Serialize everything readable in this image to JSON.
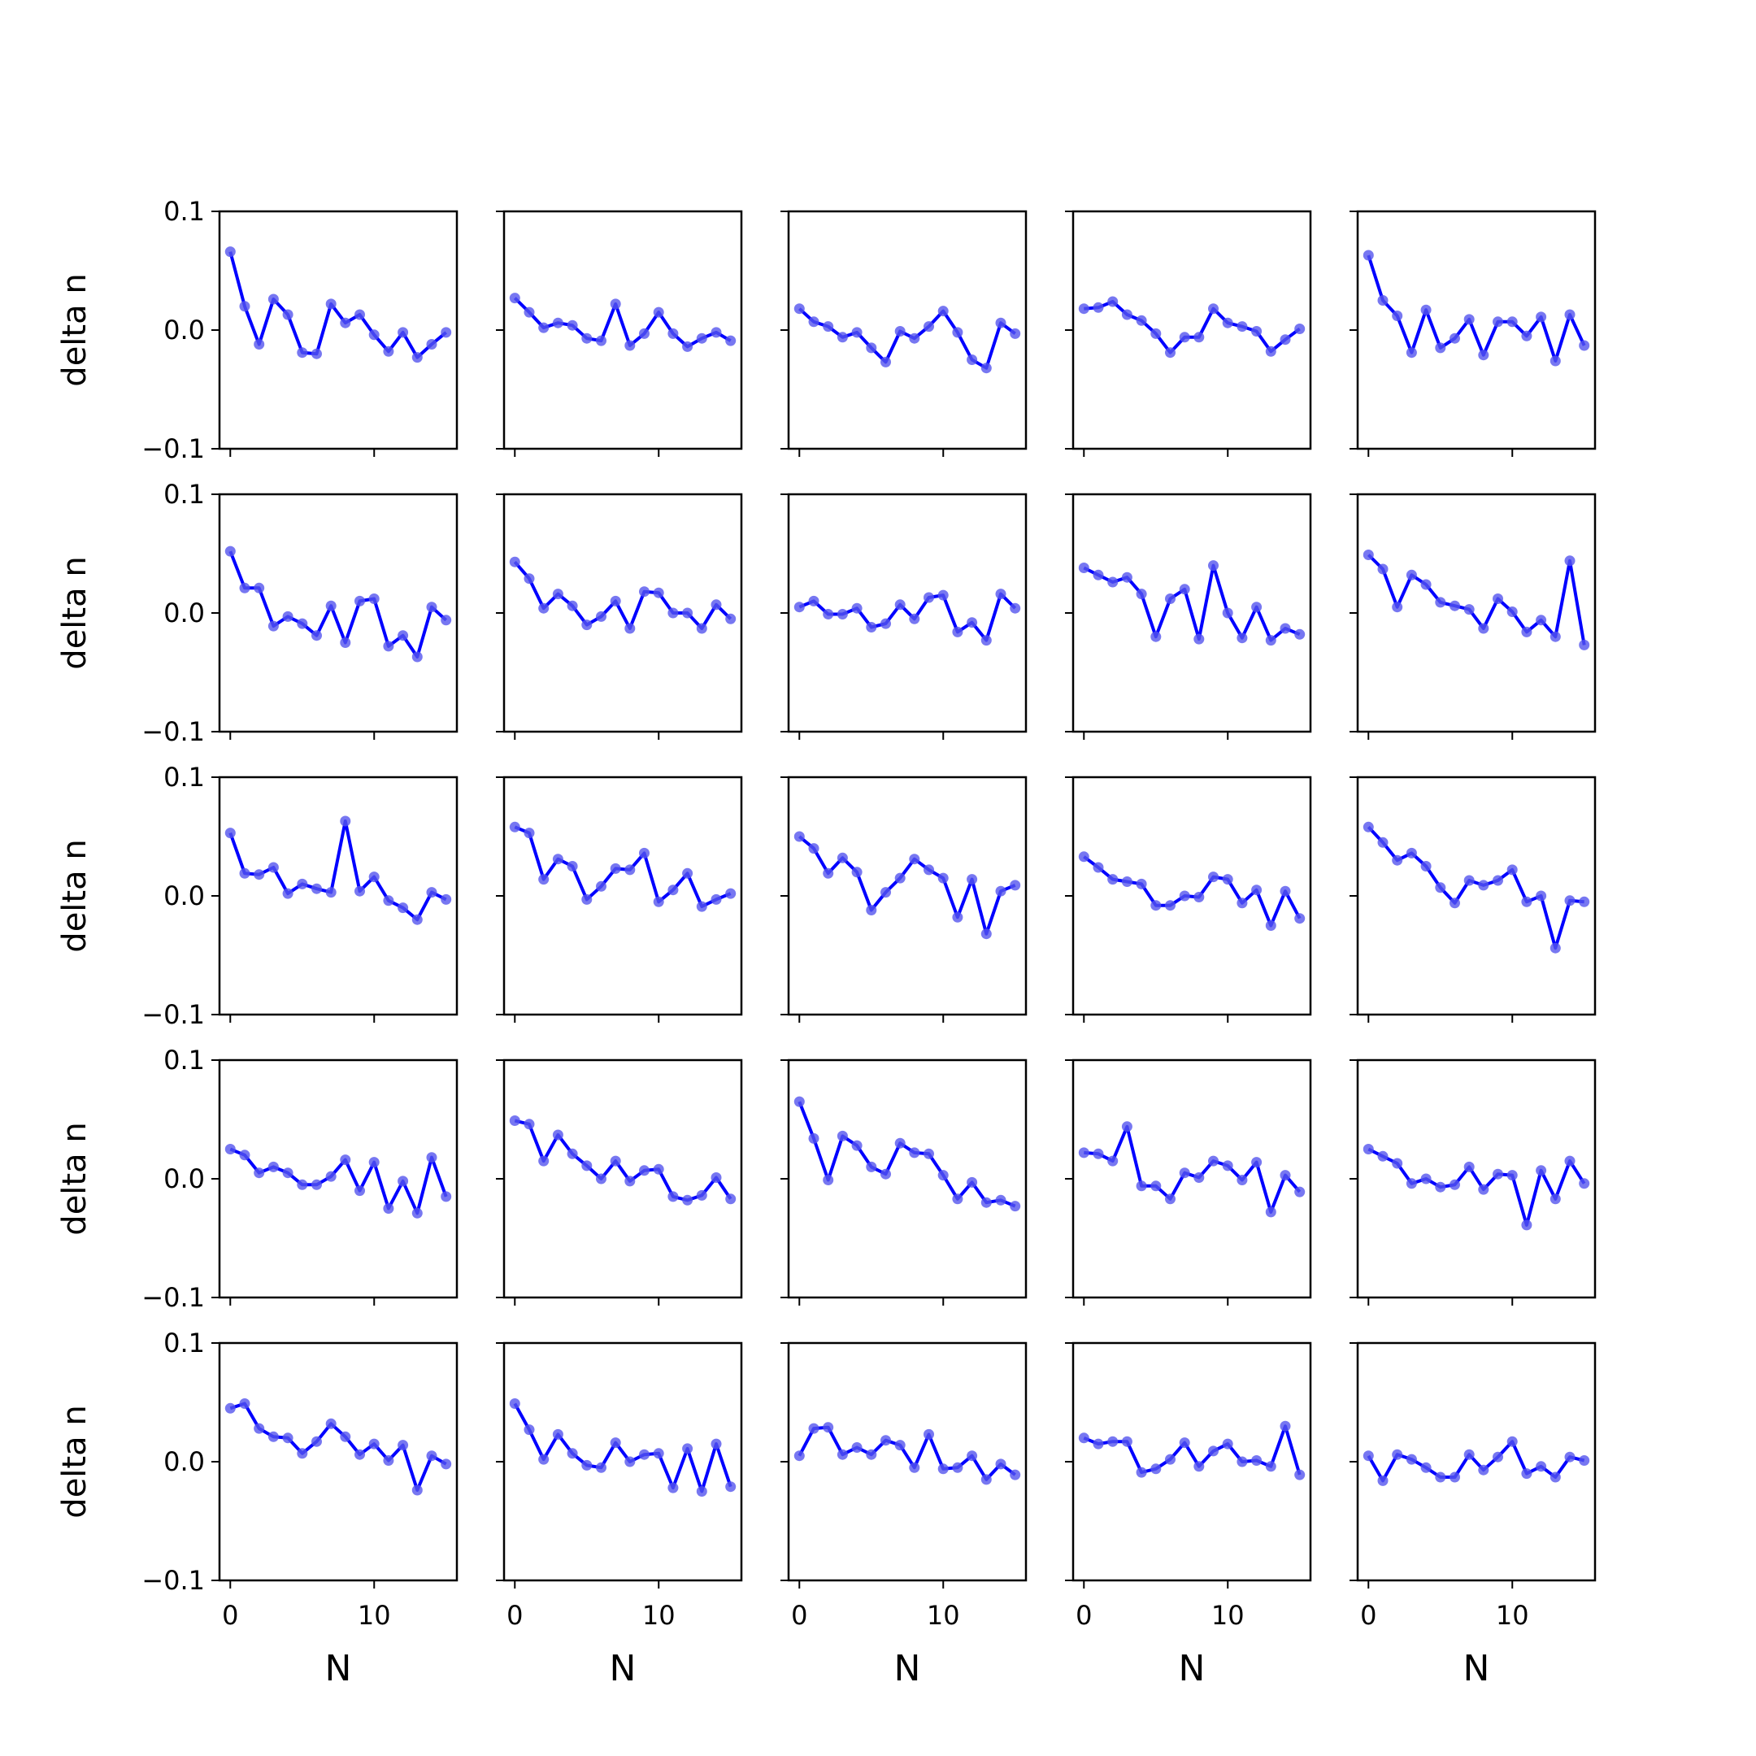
{
  "chart_data": {
    "type": "line",
    "layout": "5x5 grid of small multiples, shared axes",
    "xlabel": "N",
    "ylabel": "delta n",
    "xlim": [
      -0.75,
      15.75
    ],
    "ylim": [
      -0.1,
      0.1
    ],
    "x_ticks": [
      0,
      10
    ],
    "x_tick_labels": [
      "0",
      "10"
    ],
    "y_ticks": [
      -0.1,
      0.0,
      0.1
    ],
    "y_tick_labels": [
      "−0.1",
      "0.0",
      "0.1"
    ],
    "x": [
      0,
      1,
      2,
      3,
      4,
      5,
      6,
      7,
      8,
      9,
      10,
      11,
      12,
      13,
      14,
      15
    ],
    "line_color": "#0000ff",
    "marker_color": "#5555ee",
    "grid": false,
    "panels": [
      [
        [
          0.066,
          0.02,
          -0.012,
          0.026,
          0.013,
          -0.019,
          -0.02,
          0.022,
          0.006,
          0.013,
          -0.004,
          -0.018,
          -0.002,
          -0.023,
          -0.012,
          -0.002
        ],
        [
          0.027,
          0.015,
          0.002,
          0.006,
          0.004,
          -0.007,
          -0.009,
          0.022,
          -0.013,
          -0.003,
          0.015,
          -0.003,
          -0.014,
          -0.007,
          -0.002,
          -0.009
        ],
        [
          0.018,
          0.007,
          0.003,
          -0.006,
          -0.002,
          -0.015,
          -0.027,
          -0.001,
          -0.007,
          0.003,
          0.016,
          -0.002,
          -0.025,
          -0.032,
          0.006,
          -0.003
        ],
        [
          0.018,
          0.019,
          0.024,
          0.013,
          0.008,
          -0.003,
          -0.019,
          -0.006,
          -0.006,
          0.018,
          0.006,
          0.003,
          -0.001,
          -0.018,
          -0.008,
          0.001
        ],
        [
          0.063,
          0.025,
          0.012,
          -0.019,
          0.017,
          -0.015,
          -0.007,
          0.009,
          -0.021,
          0.007,
          0.007,
          -0.005,
          0.011,
          -0.026,
          0.013,
          -0.013
        ]
      ],
      [
        [
          0.052,
          0.021,
          0.021,
          -0.011,
          -0.003,
          -0.009,
          -0.019,
          0.006,
          -0.025,
          0.01,
          0.012,
          -0.028,
          -0.019,
          -0.037,
          0.005,
          -0.006
        ],
        [
          0.043,
          0.029,
          0.004,
          0.016,
          0.006,
          -0.01,
          -0.003,
          0.01,
          -0.013,
          0.018,
          0.017,
          0.0,
          0.0,
          -0.013,
          0.007,
          -0.005
        ],
        [
          0.005,
          0.01,
          -0.001,
          -0.001,
          0.004,
          -0.012,
          -0.009,
          0.007,
          -0.005,
          0.013,
          0.015,
          -0.016,
          -0.008,
          -0.023,
          0.016,
          0.004
        ],
        [
          0.038,
          0.032,
          0.026,
          0.03,
          0.016,
          -0.02,
          0.012,
          0.02,
          -0.022,
          0.04,
          0.0,
          -0.021,
          0.005,
          -0.023,
          -0.013,
          -0.018
        ],
        [
          0.049,
          0.037,
          0.005,
          0.032,
          0.024,
          0.009,
          0.006,
          0.003,
          -0.013,
          0.012,
          0.001,
          -0.016,
          -0.006,
          -0.02,
          0.044,
          -0.027
        ]
      ],
      [
        [
          0.053,
          0.019,
          0.018,
          0.024,
          0.002,
          0.01,
          0.006,
          0.003,
          0.063,
          0.004,
          0.016,
          -0.004,
          -0.01,
          -0.02,
          0.003,
          -0.003
        ],
        [
          0.058,
          0.053,
          0.014,
          0.031,
          0.025,
          -0.003,
          0.008,
          0.023,
          0.022,
          0.036,
          -0.005,
          0.005,
          0.019,
          -0.009,
          -0.003,
          0.002
        ],
        [
          0.05,
          0.04,
          0.019,
          0.032,
          0.02,
          -0.012,
          0.003,
          0.015,
          0.031,
          0.022,
          0.015,
          -0.018,
          0.014,
          -0.032,
          0.004,
          0.009
        ],
        [
          0.033,
          0.024,
          0.014,
          0.012,
          0.01,
          -0.008,
          -0.008,
          0.0,
          -0.001,
          0.016,
          0.014,
          -0.006,
          0.005,
          -0.025,
          0.004,
          -0.019
        ],
        [
          0.058,
          0.045,
          0.03,
          0.036,
          0.025,
          0.007,
          -0.006,
          0.013,
          0.009,
          0.013,
          0.022,
          -0.005,
          0.0,
          -0.044,
          -0.004,
          -0.005
        ]
      ],
      [
        [
          0.025,
          0.02,
          0.005,
          0.01,
          0.005,
          -0.005,
          -0.005,
          0.002,
          0.016,
          -0.01,
          0.014,
          -0.025,
          -0.002,
          -0.029,
          0.018,
          -0.015
        ],
        [
          0.049,
          0.046,
          0.015,
          0.037,
          0.021,
          0.011,
          0.0,
          0.015,
          -0.002,
          0.007,
          0.008,
          -0.015,
          -0.018,
          -0.014,
          0.001,
          -0.017
        ],
        [
          0.065,
          0.034,
          -0.001,
          0.036,
          0.028,
          0.01,
          0.004,
          0.03,
          0.022,
          0.021,
          0.003,
          -0.017,
          -0.003,
          -0.02,
          -0.018,
          -0.023
        ],
        [
          0.022,
          0.021,
          0.015,
          0.044,
          -0.006,
          -0.006,
          -0.017,
          0.005,
          0.001,
          0.015,
          0.011,
          -0.001,
          0.014,
          -0.028,
          0.003,
          -0.011
        ],
        [
          0.025,
          0.019,
          0.013,
          -0.004,
          0.0,
          -0.007,
          -0.005,
          0.01,
          -0.009,
          0.004,
          0.003,
          -0.039,
          0.007,
          -0.017,
          0.015,
          -0.004
        ]
      ],
      [
        [
          0.045,
          0.049,
          0.028,
          0.021,
          0.02,
          0.007,
          0.017,
          0.032,
          0.021,
          0.006,
          0.015,
          0.001,
          0.014,
          -0.024,
          0.005,
          -0.002
        ],
        [
          0.049,
          0.027,
          0.002,
          0.023,
          0.007,
          -0.003,
          -0.005,
          0.016,
          0.0,
          0.006,
          0.007,
          -0.022,
          0.011,
          -0.025,
          0.015,
          -0.021
        ],
        [
          0.005,
          0.028,
          0.029,
          0.006,
          0.012,
          0.006,
          0.018,
          0.014,
          -0.005,
          0.023,
          -0.006,
          -0.005,
          0.005,
          -0.015,
          -0.002,
          -0.011
        ],
        [
          0.02,
          0.015,
          0.017,
          0.017,
          -0.009,
          -0.006,
          0.002,
          0.016,
          -0.004,
          0.009,
          0.015,
          0.0,
          0.001,
          -0.004,
          0.03,
          -0.011
        ],
        [
          0.005,
          -0.016,
          0.006,
          0.002,
          -0.005,
          -0.013,
          -0.013,
          0.006,
          -0.007,
          0.004,
          0.017,
          -0.01,
          -0.004,
          -0.013,
          0.004,
          0.001
        ]
      ]
    ]
  }
}
